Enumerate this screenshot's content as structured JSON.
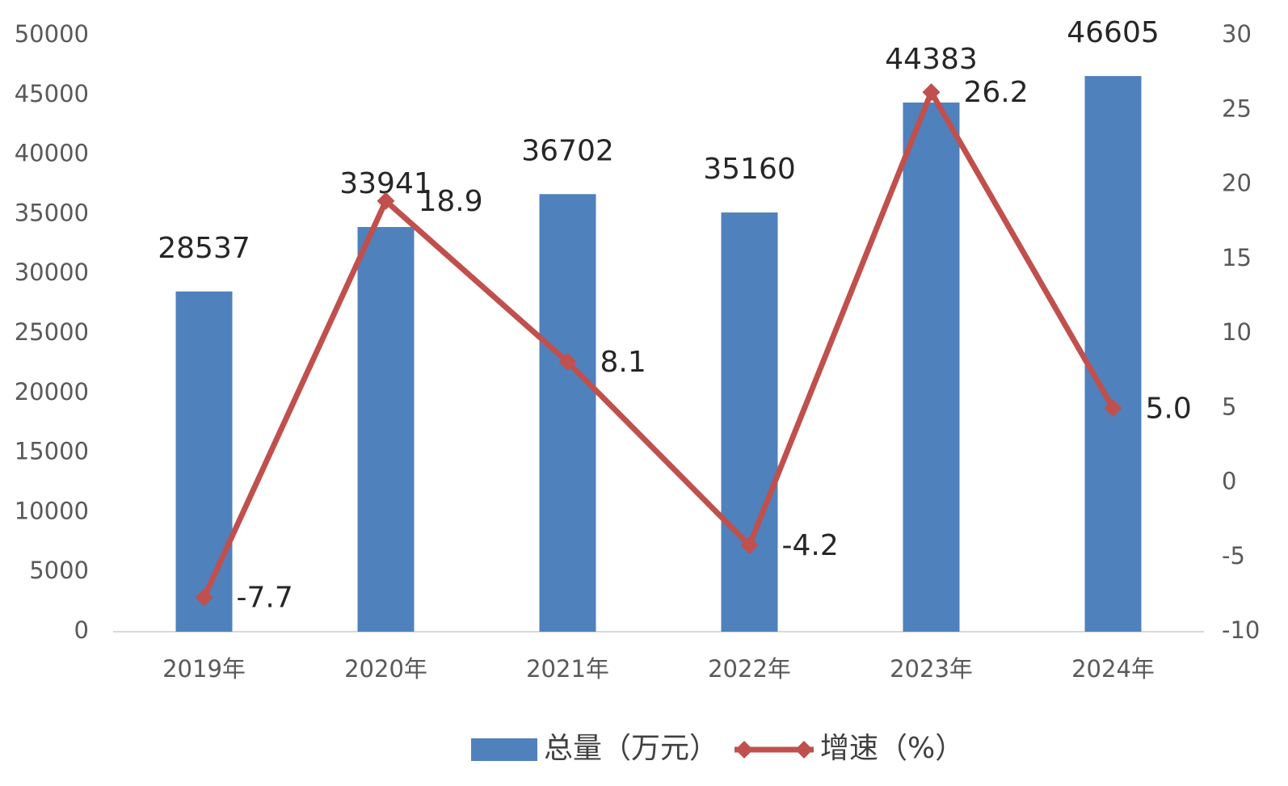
{
  "chart_data": {
    "type": "bar",
    "categories": [
      "2019年",
      "2020年",
      "2021年",
      "2022年",
      "2023年",
      "2024年"
    ],
    "series": [
      {
        "name": "总量（万元）",
        "color": "#4f81bd",
        "type": "bar",
        "values": [
          28537,
          33941,
          36702,
          35160,
          44383,
          46605
        ]
      },
      {
        "name": "增速（%）",
        "color": "#c0504d",
        "type": "line",
        "axis": "y2",
        "values": [
          -7.7,
          18.9,
          8.1,
          -4.2,
          26.2,
          5.0
        ],
        "value_labels": [
          "-7.7",
          "18.9",
          "8.1",
          "-4.2",
          "26.2",
          "5.0"
        ]
      }
    ],
    "ylim": [
      0,
      50000
    ],
    "yticks": [
      0,
      5000,
      10000,
      15000,
      20000,
      25000,
      30000,
      35000,
      40000,
      45000,
      50000
    ],
    "y2lim": [
      -10,
      30
    ],
    "y2ticks": [
      -10,
      -5,
      0,
      5,
      10,
      15,
      20,
      25,
      30
    ],
    "grid": false,
    "legend": "bottom"
  }
}
